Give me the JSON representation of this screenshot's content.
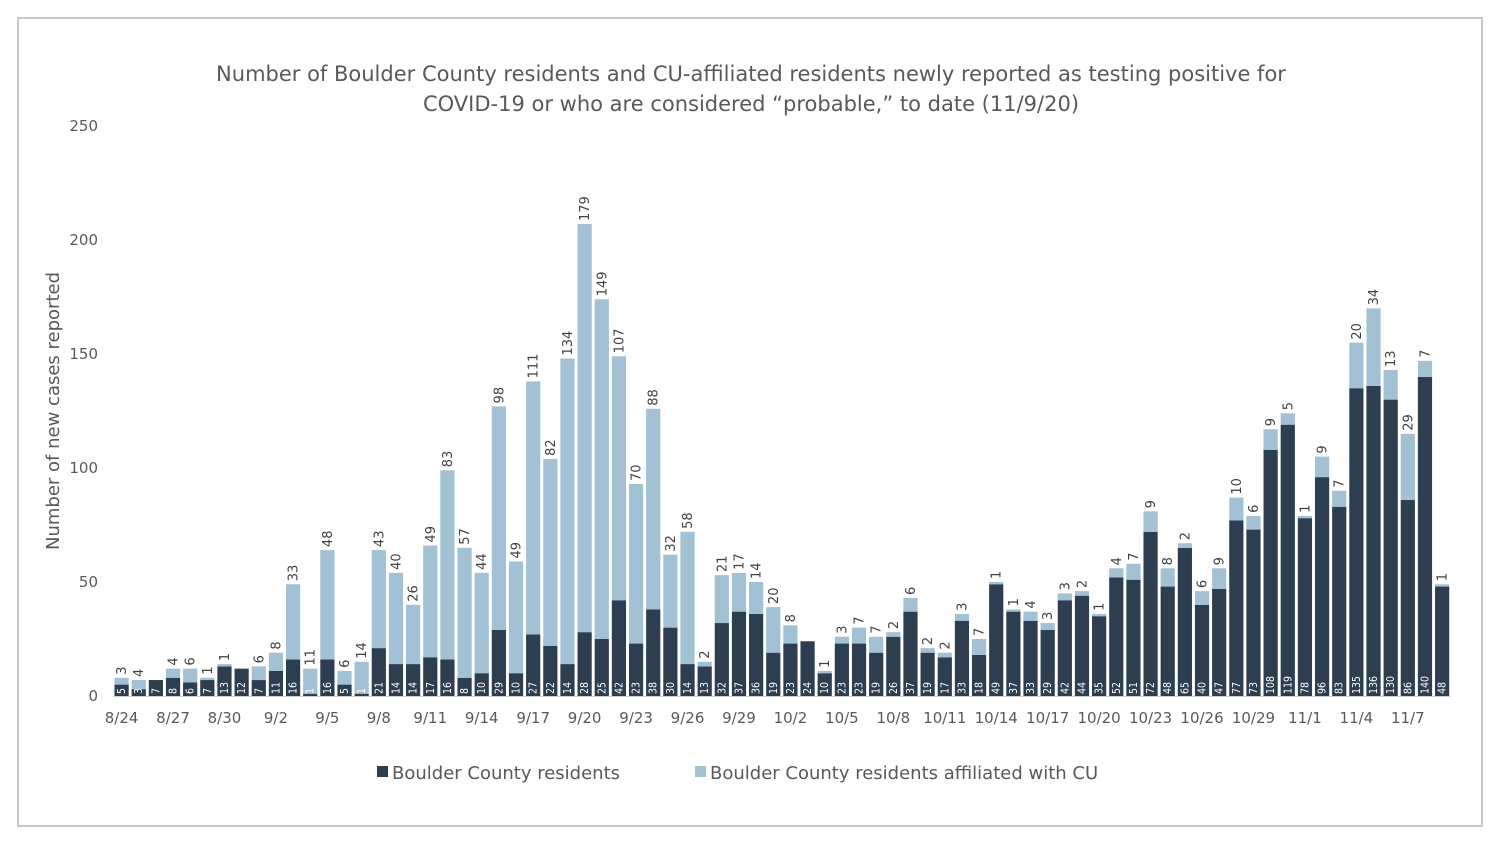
{
  "chart_data": {
    "type": "bar",
    "stacked": true,
    "title_lines": [
      "Number of Boulder County residents and CU-affiliated residents newly reported as testing positive for",
      "COVID-19 or who are considered “probable,” to date (11/9/20)"
    ],
    "xlabel": "",
    "ylabel": "Number of new cases reported",
    "ylim": [
      0,
      250
    ],
    "yticks": [
      "0",
      "50",
      "100",
      "150",
      "200",
      "250"
    ],
    "grid": false,
    "legend_position": "bottom",
    "x_tick_labels": [
      "8/24",
      "8/27",
      "8/30",
      "9/2",
      "9/5",
      "9/8",
      "9/11",
      "9/14",
      "9/17",
      "9/20",
      "9/23",
      "9/26",
      "9/29",
      "10/2",
      "10/5",
      "10/8",
      "10/11",
      "10/14",
      "10/17",
      "10/20",
      "10/23",
      "10/26",
      "10/29",
      "11/1",
      "11/4",
      "11/7"
    ],
    "num_bars": 78,
    "series": [
      {
        "name": "Boulder County residents",
        "color": "#2c3e50",
        "values": [
          5,
          3,
          7,
          8,
          6,
          7,
          13,
          12,
          7,
          11,
          16,
          1,
          16,
          5,
          1,
          21,
          14,
          14,
          17,
          16,
          8,
          10,
          29,
          10,
          27,
          22,
          14,
          28,
          25,
          42,
          23,
          38,
          30,
          14,
          13,
          32,
          37,
          36,
          19,
          23,
          24,
          10,
          23,
          23,
          19,
          26,
          37,
          19,
          17,
          33,
          18,
          49,
          37,
          33,
          29,
          42,
          44,
          35,
          52,
          51,
          72,
          48,
          65,
          40,
          47,
          77,
          73,
          108,
          119,
          78,
          96,
          83,
          135,
          136,
          130,
          86,
          140,
          48
        ]
      },
      {
        "name": "Boulder County residents affiliated with CU",
        "color": "#a3c1d4",
        "values": [
          3,
          4,
          0,
          4,
          6,
          1,
          1,
          0,
          6,
          8,
          33,
          11,
          48,
          6,
          14,
          43,
          40,
          26,
          49,
          83,
          57,
          44,
          98,
          49,
          111,
          82,
          134,
          179,
          149,
          107,
          70,
          88,
          32,
          58,
          2,
          21,
          17,
          14,
          20,
          8,
          0,
          1,
          3,
          7,
          7,
          2,
          6,
          2,
          2,
          3,
          7,
          1,
          1,
          4,
          3,
          3,
          2,
          1,
          4,
          7,
          9,
          8,
          2,
          6,
          9,
          10,
          6,
          9,
          5,
          1,
          9,
          7,
          20,
          34,
          13,
          29,
          7,
          1
        ]
      }
    ]
  }
}
